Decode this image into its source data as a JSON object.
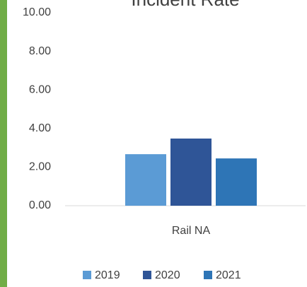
{
  "chart_data": {
    "type": "bar",
    "title": "Incident Rate",
    "categories": [
      "Rail NA"
    ],
    "series": [
      {
        "name": "2019",
        "color": "#5b9bd5",
        "values": [
          2.67
        ]
      },
      {
        "name": "2020",
        "color": "#2f5597",
        "values": [
          3.48
        ]
      },
      {
        "name": "2021",
        "color": "#2e75b6",
        "values": [
          2.45
        ]
      }
    ],
    "ylim": [
      0,
      10
    ],
    "yticks": [
      {
        "value": 0,
        "label": "0.00"
      },
      {
        "value": 2,
        "label": "2.00"
      },
      {
        "value": 4,
        "label": "4.00"
      },
      {
        "value": 6,
        "label": "6.00"
      },
      {
        "value": 8,
        "label": "8.00"
      },
      {
        "value": 10,
        "label": "10.00"
      }
    ],
    "grid": false,
    "legend": "bottom"
  }
}
